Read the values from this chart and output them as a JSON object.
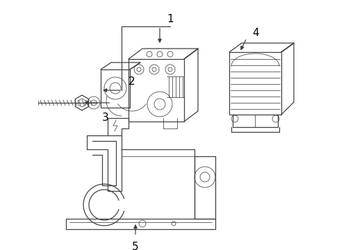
{
  "background_color": "#ffffff",
  "fig_width": 4.89,
  "fig_height": 3.6,
  "dpi": 100,
  "line_color": "#404040",
  "line_width": 0.9,
  "thin_lw": 0.55,
  "label_fontsize": 10
}
